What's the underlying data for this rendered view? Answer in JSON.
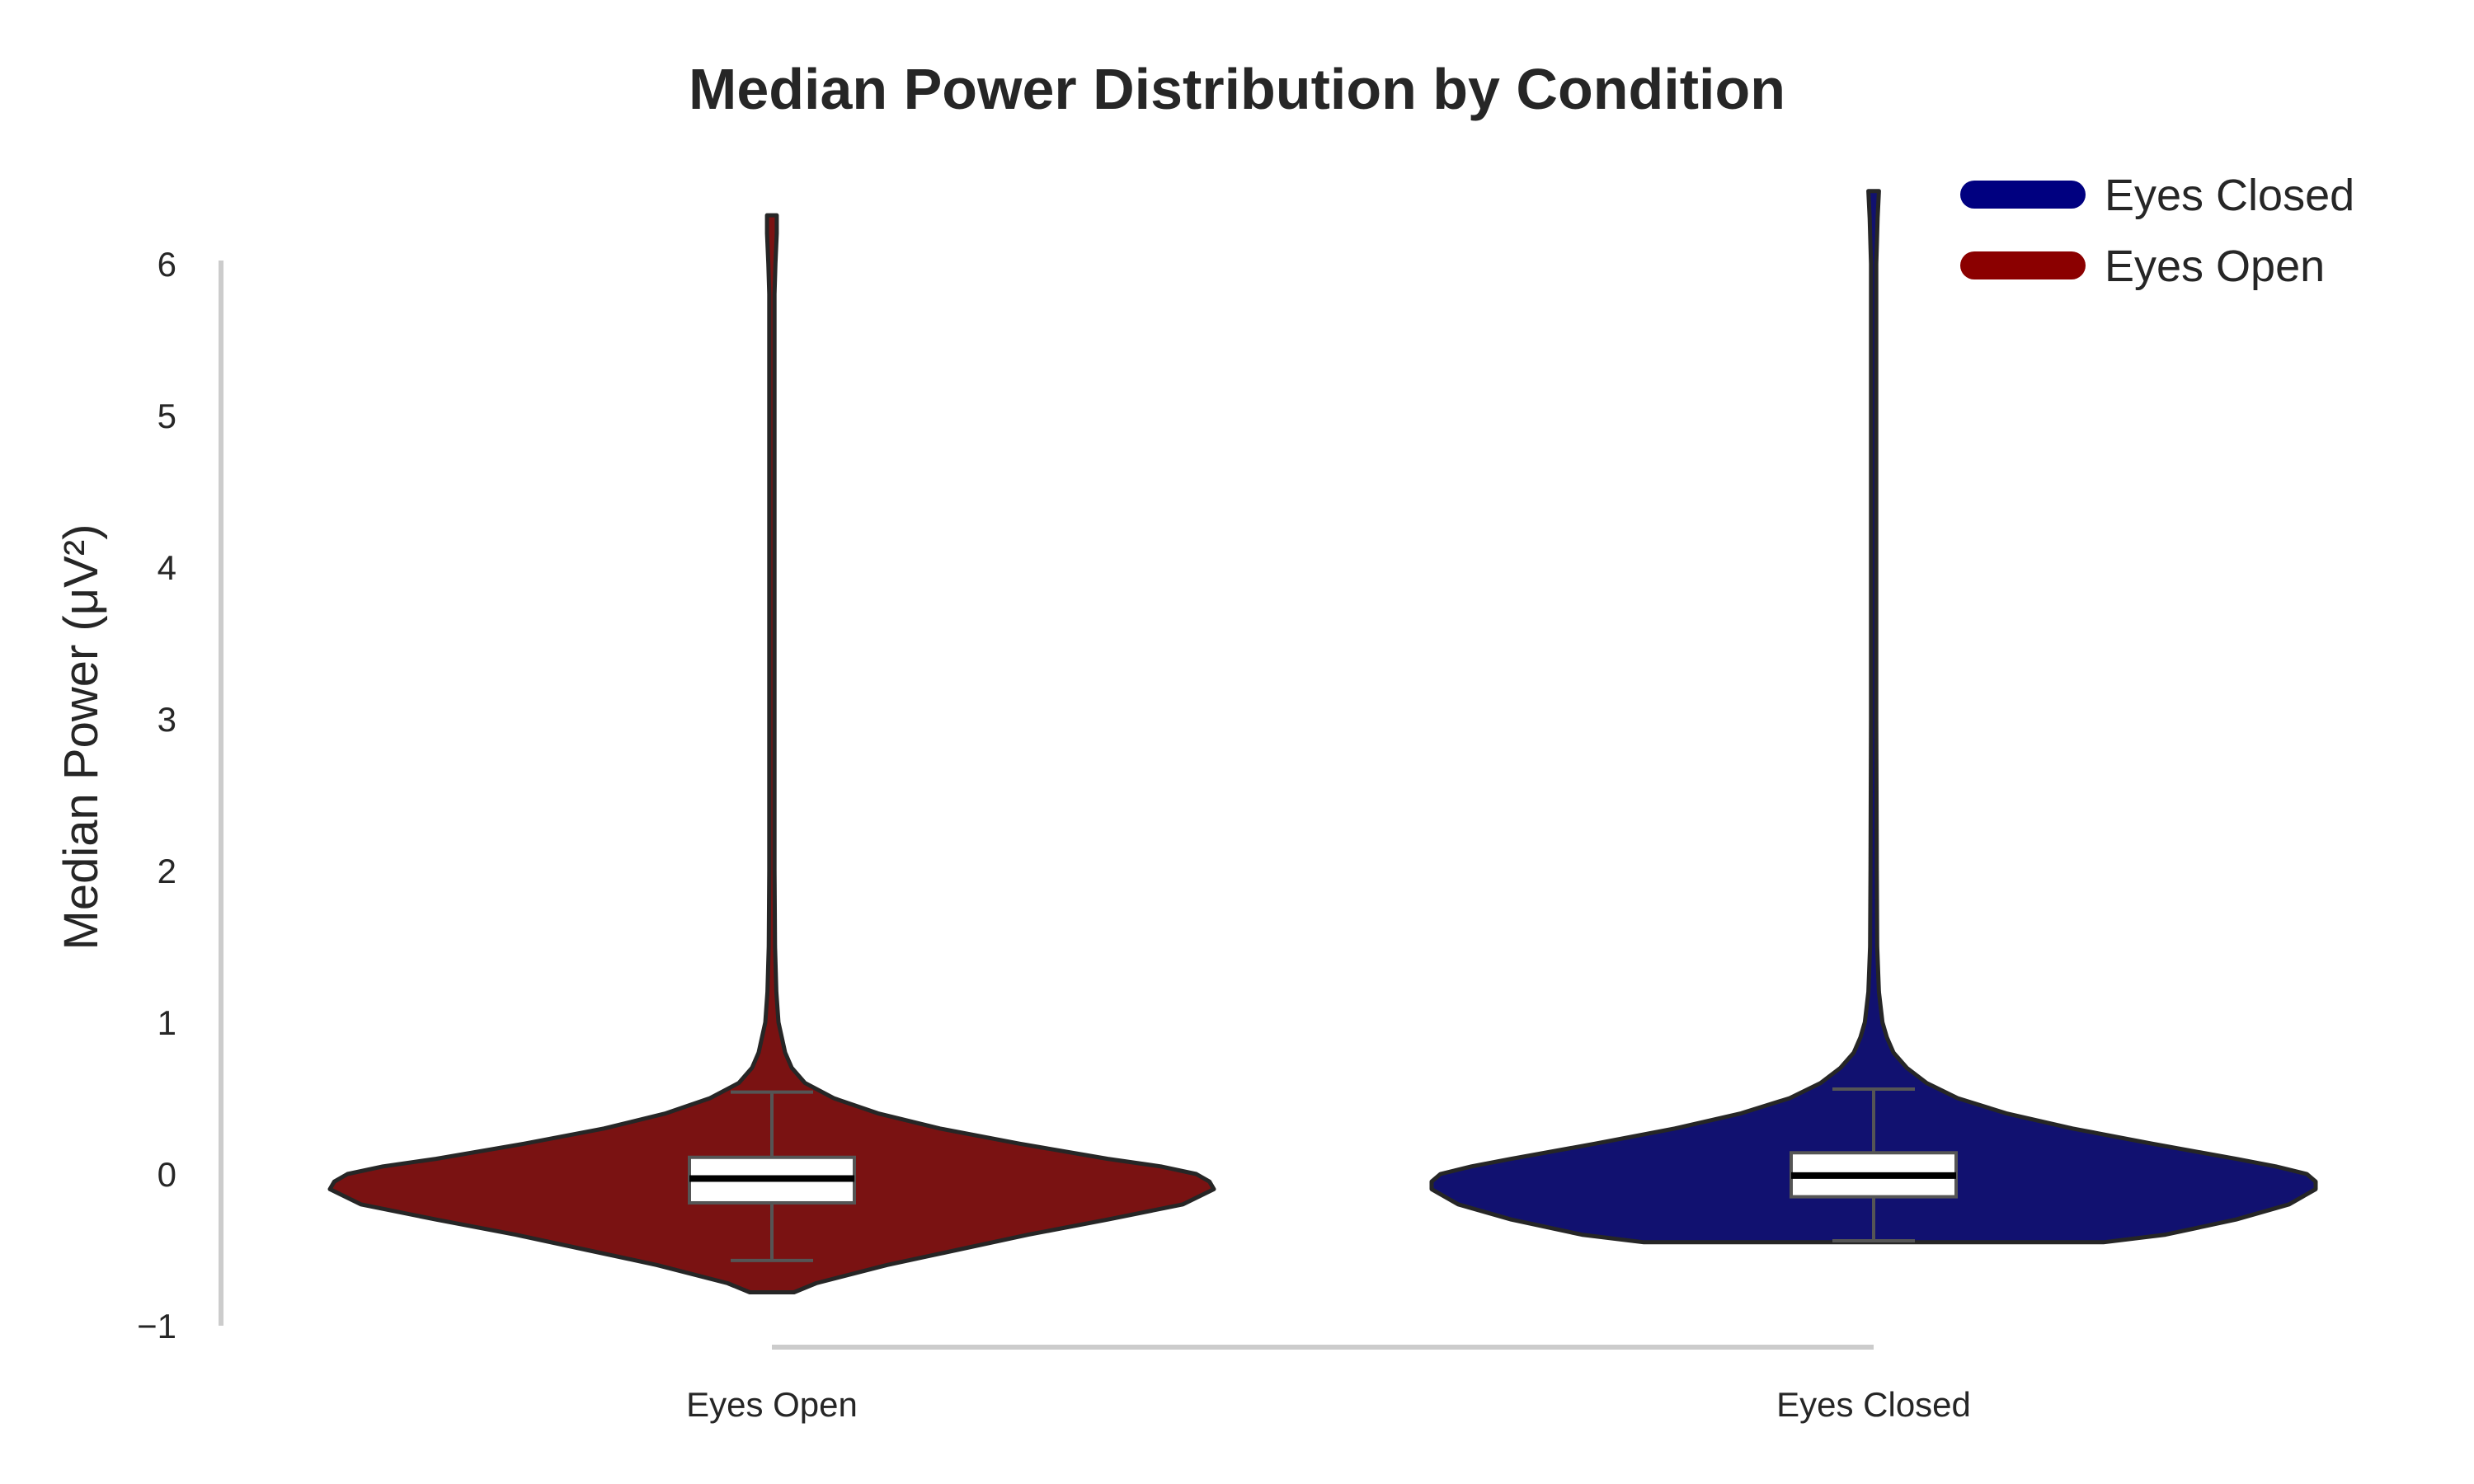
{
  "chart_data": {
    "type": "violin",
    "title": "Median Power Distribution by Condition",
    "xlabel": "",
    "ylabel": "Median Power (μV²)",
    "ylim": [
      -1,
      6.6
    ],
    "yticks": [
      -1,
      0,
      1,
      2,
      3,
      4,
      5,
      6
    ],
    "ytick_labels": [
      "−1",
      "0",
      "1",
      "2",
      "3",
      "4",
      "5",
      "6"
    ],
    "grid": false,
    "legend_position": "top-right",
    "categories": [
      "Eyes Open",
      "Eyes Closed"
    ],
    "series": [
      {
        "name": "Eyes Open",
        "category": "Eyes Open",
        "color": "#8b0000",
        "fill": "#7a1212",
        "min": -0.78,
        "max": 6.32,
        "box": {
          "q1": -0.19,
          "median": -0.03,
          "q3": 0.11,
          "whisker_low": -0.57,
          "whisker_high": 0.54
        },
        "profile": [
          [
            -0.78,
            0.05
          ],
          [
            -0.72,
            0.1
          ],
          [
            -0.6,
            0.26
          ],
          [
            -0.5,
            0.42
          ],
          [
            -0.4,
            0.58
          ],
          [
            -0.3,
            0.76
          ],
          [
            -0.2,
            0.93
          ],
          [
            -0.1,
            1.0
          ],
          [
            -0.05,
            0.99
          ],
          [
            0.0,
            0.96
          ],
          [
            0.05,
            0.88
          ],
          [
            0.1,
            0.76
          ],
          [
            0.2,
            0.56
          ],
          [
            0.3,
            0.38
          ],
          [
            0.4,
            0.24
          ],
          [
            0.5,
            0.14
          ],
          [
            0.6,
            0.075
          ],
          [
            0.7,
            0.045
          ],
          [
            0.8,
            0.03
          ],
          [
            1.0,
            0.015
          ],
          [
            1.2,
            0.01
          ],
          [
            1.5,
            0.007
          ],
          [
            2.0,
            0.006
          ],
          [
            3.0,
            0.006
          ],
          [
            4.0,
            0.006
          ],
          [
            5.0,
            0.006
          ],
          [
            5.8,
            0.006
          ],
          [
            6.0,
            0.008
          ],
          [
            6.2,
            0.011
          ],
          [
            6.32,
            0.011
          ]
        ]
      },
      {
        "name": "Eyes Closed",
        "category": "Eyes Closed",
        "color": "#000080",
        "fill": "#111170",
        "min": -0.45,
        "max": 6.48,
        "box": {
          "q1": -0.15,
          "median": -0.01,
          "q3": 0.14,
          "whisker_low": -0.44,
          "whisker_high": 0.56
        },
        "profile": [
          [
            -0.45,
            0.52
          ],
          [
            -0.4,
            0.66
          ],
          [
            -0.3,
            0.82
          ],
          [
            -0.2,
            0.94
          ],
          [
            -0.1,
            1.0
          ],
          [
            -0.05,
            1.0
          ],
          [
            0.0,
            0.98
          ],
          [
            0.05,
            0.91
          ],
          [
            0.1,
            0.82
          ],
          [
            0.2,
            0.63
          ],
          [
            0.3,
            0.45
          ],
          [
            0.4,
            0.3
          ],
          [
            0.5,
            0.19
          ],
          [
            0.6,
            0.12
          ],
          [
            0.7,
            0.075
          ],
          [
            0.8,
            0.045
          ],
          [
            0.9,
            0.03
          ],
          [
            1.0,
            0.02
          ],
          [
            1.2,
            0.012
          ],
          [
            1.5,
            0.008
          ],
          [
            2.0,
            0.007
          ],
          [
            3.0,
            0.006
          ],
          [
            4.0,
            0.006
          ],
          [
            5.0,
            0.006
          ],
          [
            6.0,
            0.006
          ],
          [
            6.3,
            0.009
          ],
          [
            6.48,
            0.012
          ]
        ]
      }
    ],
    "legend": [
      {
        "label": "Eyes Closed",
        "color": "#000080"
      },
      {
        "label": "Eyes Open",
        "color": "#8b0000"
      }
    ]
  }
}
